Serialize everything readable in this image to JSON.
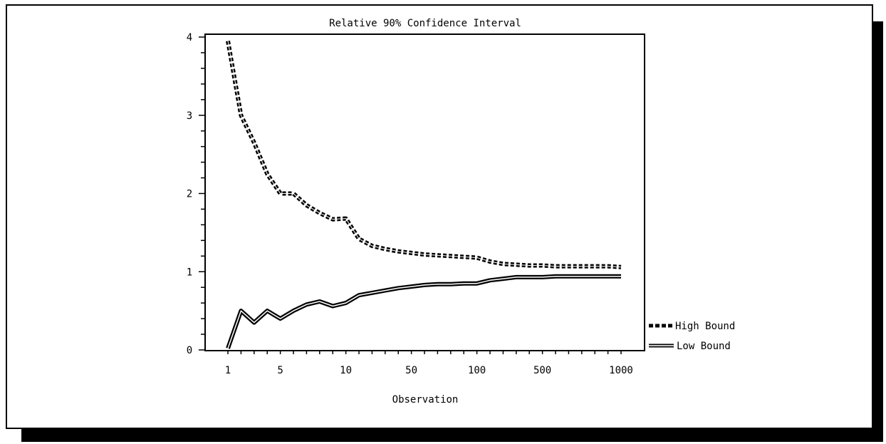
{
  "chart_data": {
    "type": "line",
    "title": "Relative 90% Confidence Interval",
    "xlabel": "Observation",
    "ylabel": "",
    "ylim": [
      0,
      4
    ],
    "y_ticks": [
      "0",
      "1",
      "2",
      "3",
      "4"
    ],
    "x_ticks": [
      "1",
      "5",
      "10",
      "50",
      "100",
      "500",
      "1000"
    ],
    "x_tick_positions": [
      1,
      5,
      10,
      15,
      20,
      25,
      31
    ],
    "legend_position": "right-bottom",
    "series": [
      {
        "name": "High Bound",
        "style": "dashed",
        "x": [
          1,
          2,
          3,
          4,
          5,
          6,
          7,
          8,
          9,
          10,
          11,
          12,
          13,
          14,
          15,
          16,
          17,
          18,
          19,
          20,
          21,
          22,
          23,
          24,
          25,
          26,
          27,
          28,
          29,
          30,
          31
        ],
        "values": [
          3.95,
          3.0,
          2.65,
          2.25,
          2.0,
          2.0,
          1.85,
          1.75,
          1.67,
          1.68,
          1.42,
          1.33,
          1.29,
          1.26,
          1.24,
          1.22,
          1.21,
          1.2,
          1.19,
          1.18,
          1.13,
          1.1,
          1.09,
          1.08,
          1.08,
          1.07,
          1.07,
          1.07,
          1.07,
          1.07,
          1.06
        ]
      },
      {
        "name": "Low Bound",
        "style": "solid",
        "x": [
          1,
          2,
          3,
          4,
          5,
          6,
          7,
          8,
          9,
          10,
          11,
          12,
          13,
          14,
          15,
          16,
          17,
          18,
          19,
          20,
          21,
          22,
          23,
          24,
          25,
          26,
          27,
          28,
          29,
          30,
          31
        ],
        "values": [
          0.02,
          0.5,
          0.35,
          0.5,
          0.4,
          0.5,
          0.58,
          0.62,
          0.56,
          0.6,
          0.7,
          0.73,
          0.76,
          0.79,
          0.81,
          0.83,
          0.84,
          0.84,
          0.85,
          0.85,
          0.89,
          0.91,
          0.93,
          0.93,
          0.93,
          0.94,
          0.94,
          0.94,
          0.94,
          0.94,
          0.94
        ]
      }
    ]
  }
}
